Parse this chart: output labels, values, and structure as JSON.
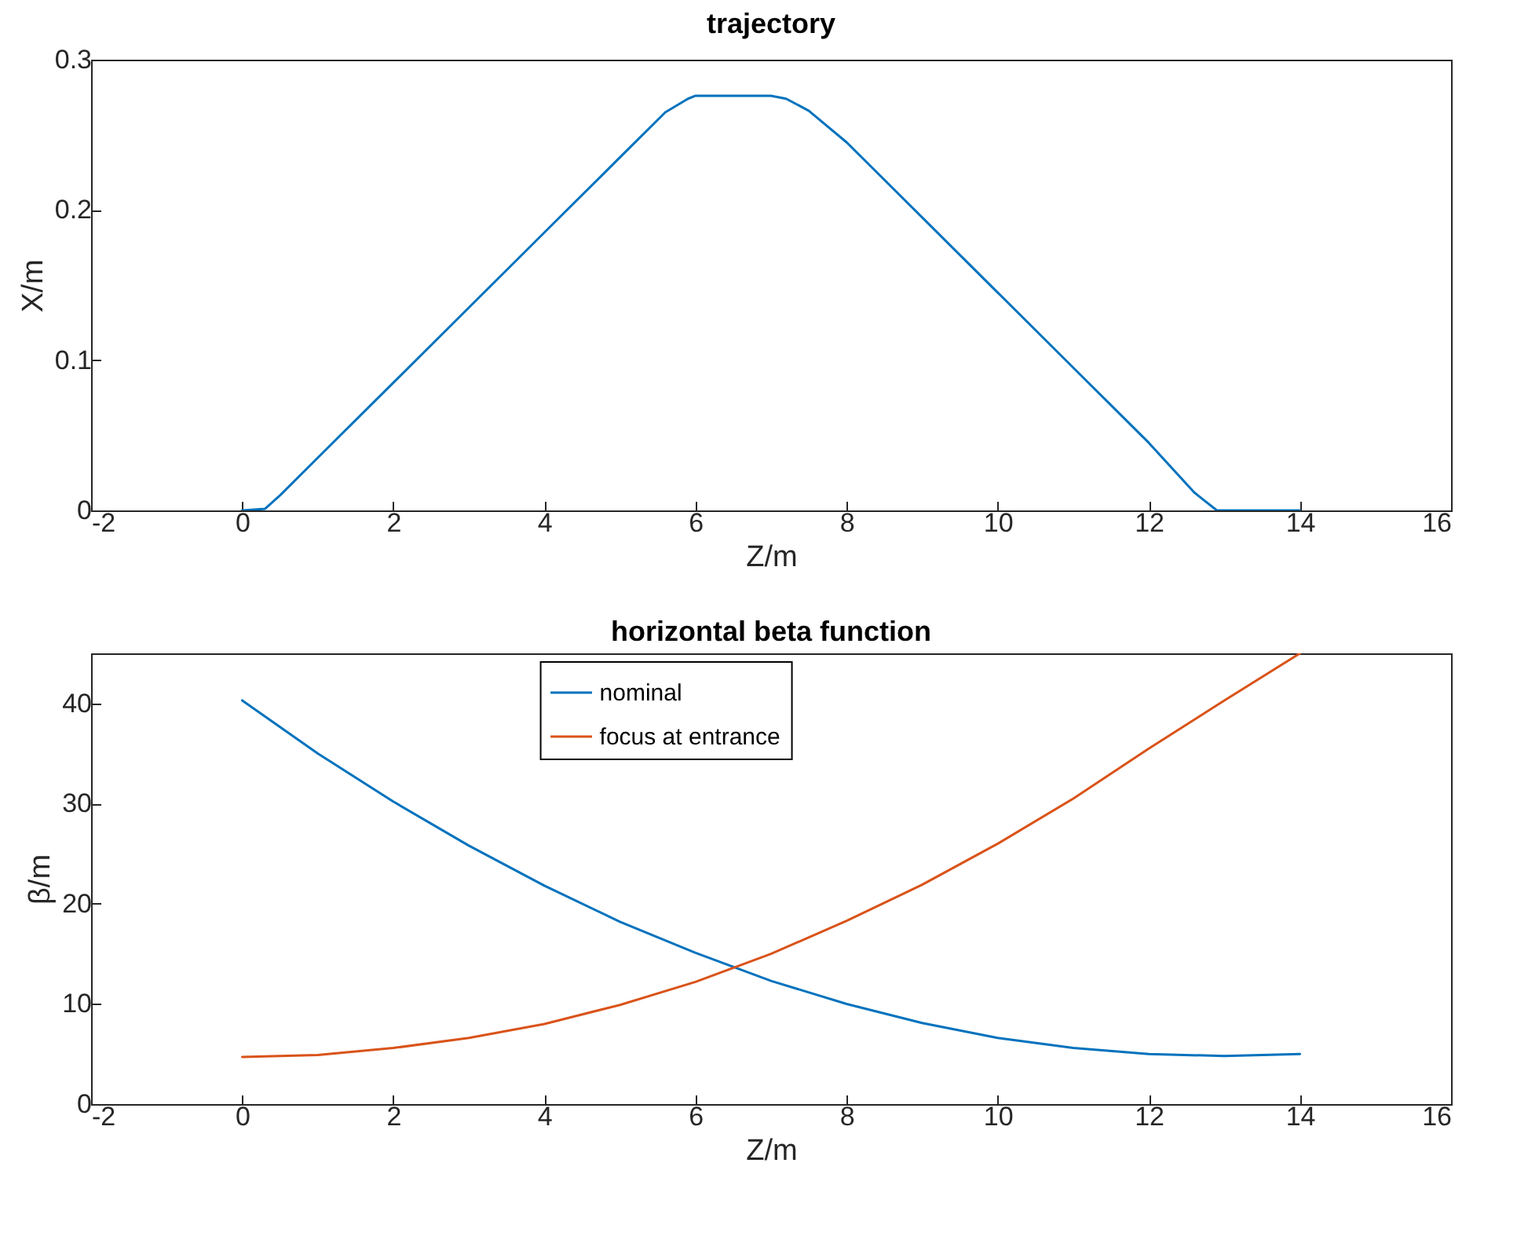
{
  "chart_data": [
    {
      "type": "line",
      "title": "trajectory",
      "xlabel": "Z/m",
      "ylabel": "X/m",
      "x": [
        0,
        0.3,
        0.5,
        1,
        2,
        3,
        4,
        5,
        5.6,
        5.9,
        6,
        7,
        7.2,
        7.5,
        8,
        9,
        10,
        11,
        12,
        12.6,
        12.9,
        14
      ],
      "series": [
        {
          "color": "#0072bd",
          "values": [
            0,
            0.001,
            0.01,
            0.035,
            0.085,
            0.135,
            0.185,
            0.235,
            0.265,
            0.274,
            0.276,
            0.276,
            0.274,
            0.266,
            0.245,
            0.195,
            0.145,
            0.095,
            0.045,
            0.012,
            0,
            0
          ]
        }
      ],
      "xlim": [
        -2,
        16
      ],
      "xticks": [
        -2,
        0,
        2,
        4,
        6,
        8,
        10,
        12,
        14,
        16
      ],
      "ylim": [
        0,
        0.3
      ],
      "yticks": [
        0,
        0.1,
        0.2,
        0.3
      ],
      "grid": false,
      "marker": "none",
      "line_style": "solid"
    },
    {
      "type": "line",
      "title": "horizontal beta function",
      "xlabel": "Z/m",
      "ylabel": "β/m",
      "x": [
        0,
        1,
        2,
        3,
        4,
        5,
        6,
        7,
        8,
        9,
        10,
        11,
        12,
        13,
        14
      ],
      "series": [
        {
          "name": "nominal",
          "color": "#0072bd",
          "values": [
            40.3,
            35,
            30.2,
            25.8,
            21.8,
            18.2,
            15.1,
            12.3,
            10,
            8.1,
            6.6,
            5.6,
            5,
            4.8,
            5
          ]
        },
        {
          "name": "focus at entrance",
          "color": "#d95319",
          "values": [
            4.7,
            4.9,
            5.6,
            6.6,
            8,
            9.9,
            12.2,
            15,
            18.3,
            21.9,
            26,
            30.5,
            35.5,
            40.3,
            45
          ]
        }
      ],
      "xlim": [
        -2,
        16
      ],
      "xticks": [
        -2,
        0,
        2,
        4,
        6,
        8,
        10,
        12,
        14,
        16
      ],
      "ylim": [
        0,
        45
      ],
      "yticks": [
        0,
        10,
        20,
        30,
        40
      ],
      "grid": false,
      "legend": "top",
      "marker": "none",
      "line_style": "solid"
    }
  ]
}
